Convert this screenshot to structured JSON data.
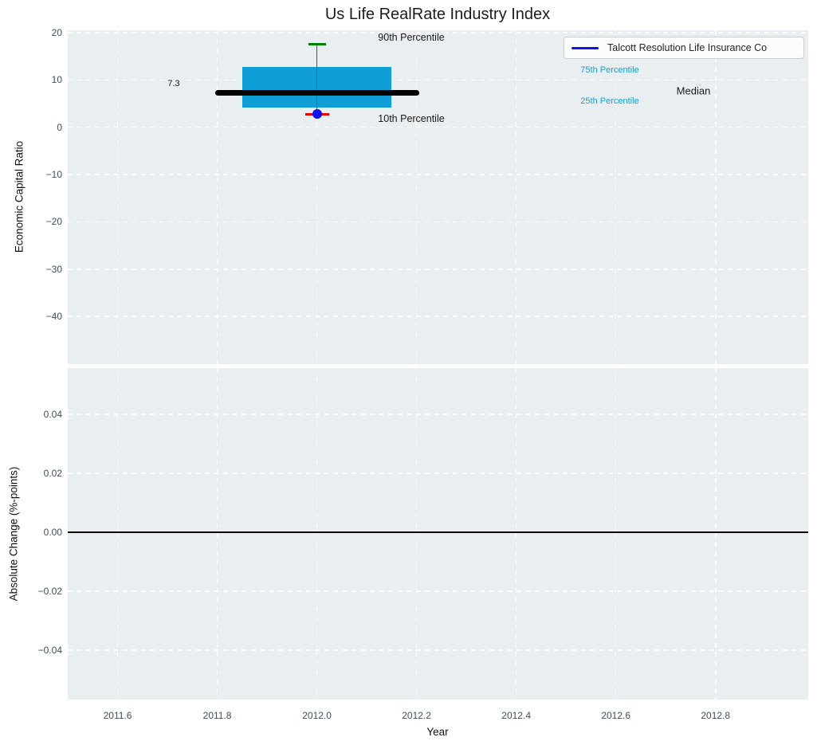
{
  "title": "Us Life RealRate Industry Index",
  "colors": {
    "plot_bg": "#e9eef0",
    "grid": "#ffffff",
    "box_fill": "#0f9fd6",
    "median_line": "#000000",
    "p90_cap": "#008000",
    "p10_cap": "#e60000",
    "company_dot": "#0f0fe8",
    "legend_line": "#0f0fe8",
    "whisker": "#555555",
    "zero_line": "#000000",
    "tick_label": "#3d4f5e",
    "percentile_label": "#159fd4"
  },
  "chart_data": [
    {
      "type": "box",
      "title": "Us Life RealRate Industry Index",
      "ylabel": "Economic Capital Ratio",
      "xlabel": "Year",
      "grid": true,
      "xlim": [
        2011.5,
        2012.986
      ],
      "ylim": [
        -50.1,
        20.5
      ],
      "xticks": [
        2011.6,
        2011.8,
        2012.0,
        2012.2,
        2012.4,
        2012.6,
        2012.8
      ],
      "xtick_labels": [
        "2011.6",
        "2011.8",
        "2012.0",
        "2012.2",
        "2012.4",
        "2012.6",
        "2012.8"
      ],
      "yticks": [
        20,
        10,
        0,
        -10,
        -20,
        -30,
        -40
      ],
      "ytick_labels": [
        "20",
        "10",
        "0",
        "−10",
        "−20",
        "−30",
        "−40"
      ],
      "legend": {
        "label": "Talcott Resolution Life Insurance Co",
        "position": "upper right"
      },
      "box": {
        "x": 2012.0,
        "p90": 17.5,
        "p75": 12.75,
        "median": 7.3,
        "p25": 4.15,
        "p10": 2.8,
        "company_marker": 2.8,
        "box_x_range": [
          2011.85,
          2012.15
        ],
        "median_x_range": [
          2011.8,
          2012.2
        ]
      },
      "annotations": [
        {
          "name": "p90-label",
          "text": "90th Percentile",
          "color": "#1a1a1a",
          "size": 12.5
        },
        {
          "name": "p10-label",
          "text": "10th Percentile",
          "color": "#1a1a1a",
          "size": 12.5
        },
        {
          "name": "p75-label",
          "text": "75th Percentile",
          "color": "#159fd4",
          "size": 11
        },
        {
          "name": "p25-label",
          "text": "25th Percentile",
          "color": "#159fd4",
          "size": 11
        },
        {
          "name": "median-label",
          "text": "Median",
          "color": "#1a1a1a",
          "size": 13
        },
        {
          "name": "median-value-label",
          "text": "7.3",
          "color": "#1a1a1a",
          "size": 11
        }
      ]
    },
    {
      "type": "line",
      "ylabel": "Absolute Change (%-points)",
      "xlabel": "Year",
      "grid": true,
      "ylim": [
        -0.0568,
        0.0557
      ],
      "yticks": [
        0.04,
        0.02,
        0.0,
        -0.02,
        -0.04
      ],
      "ytick_labels": [
        "0.04",
        "0.02",
        "0.00",
        "−0.02",
        "−0.04"
      ],
      "zero_line": 0.0,
      "series": []
    }
  ]
}
